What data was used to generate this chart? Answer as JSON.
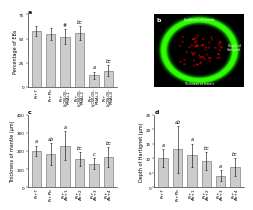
{
  "panel_a": {
    "title": "a",
    "ylabel": "Percentage of EBs",
    "categories": [
      "Pt+T",
      "Pt+Pb",
      "Pt+\nLjCBL05-\nRNAi-1",
      "Pt+\nLjCBL05-\nRNAi-2",
      "Pt+\nLjCBL05-\nRNAi-3",
      "Pt+\nLjCBL05-\nRNAi-4"
    ],
    "values": [
      58,
      55,
      52,
      56,
      12,
      17
    ],
    "errors": [
      5,
      6,
      8,
      7,
      4,
      6
    ],
    "letters": [
      "",
      "",
      "#",
      "bc",
      "a",
      "bc"
    ],
    "ylim": [
      0,
      75
    ],
    "yticks": [
      0,
      25,
      50,
      75
    ]
  },
  "panel_c": {
    "title": "c",
    "ylabel": "Thickness of mantle (μm)",
    "categories": [
      "Pt+T",
      "Pt+Pb",
      "Pt+\nAb+1",
      "Pt+\nAb+2",
      "Pt+\nAb+3",
      "Pt+\nAb+4"
    ],
    "values": [
      200,
      185,
      230,
      155,
      130,
      165
    ],
    "errors": [
      30,
      60,
      80,
      40,
      30,
      55
    ],
    "letters": [
      "a",
      "ab",
      "a",
      "bc",
      "c",
      "bc"
    ],
    "ylim": [
      0,
      400
    ],
    "yticks": [
      0,
      100,
      200,
      300,
      400
    ]
  },
  "panel_d": {
    "title": "d",
    "ylabel": "Depth of Hartignet (μm)",
    "categories": [
      "Pt+T",
      "Pt+Pb",
      "Pt+\nAb+1",
      "Pt+\nAb+2",
      "Pt+\nAb+3",
      "Pt+\nAb+4"
    ],
    "values": [
      10,
      13,
      11,
      9,
      4,
      7
    ],
    "errors": [
      3,
      8,
      4,
      3,
      2,
      3
    ],
    "letters": [
      "a",
      "ab",
      "a",
      "bc",
      "a",
      "bc"
    ],
    "ylim": [
      0,
      25
    ],
    "yticks": [
      0,
      5,
      10,
      15,
      20,
      25
    ]
  },
  "bar_color": "#cccccc",
  "bar_edgecolor": "#666666",
  "bg_color": "#ffffff",
  "fontsize_tick": 3.0,
  "fontsize_label": 3.5,
  "fontsize_title": 4.5,
  "fontsize_letter": 3.5,
  "bar_width": 0.65,
  "linewidth": 0.4
}
